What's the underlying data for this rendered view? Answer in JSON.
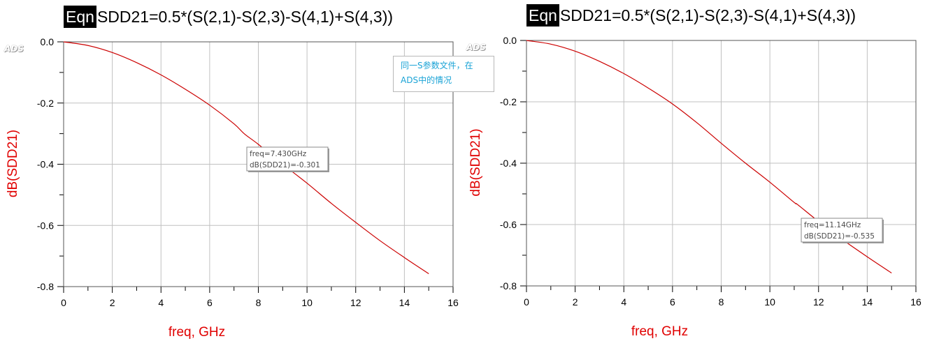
{
  "annotation": {
    "line1": "同一S参数文件，在",
    "line2": "ADS中的情况"
  },
  "colors": {
    "curve": "#cc0000",
    "axis_label": "#e00000",
    "annotation": "#1aa3d6",
    "grid": "#c0c0c0"
  },
  "chart_data": [
    {
      "type": "line",
      "eqn_badge": "Eqn",
      "title": "SDD21=0.5*(S(2,1)-S(2,3)-S(4,1)+S(4,3))",
      "watermark": "ADS",
      "xlabel": "freq, GHz",
      "ylabel": "dB(SDD21)",
      "xlim": [
        0,
        16
      ],
      "ylim": [
        -0.8,
        0.0
      ],
      "x_ticks": [
        0,
        2,
        4,
        6,
        8,
        10,
        12,
        14,
        16
      ],
      "x_tick_labels": [
        "0",
        "2",
        "4",
        "6",
        "8",
        "10",
        "12",
        "14",
        "16"
      ],
      "y_ticks": [
        0.0,
        -0.2,
        -0.4,
        -0.6,
        -0.8
      ],
      "y_tick_labels": [
        "0.0",
        "-0.2",
        "-0.4",
        "-0.6",
        "-0.8"
      ],
      "grid": true,
      "series": [
        {
          "x": [
            0,
            1,
            2,
            3,
            4,
            5,
            6,
            7,
            7.43,
            8,
            9,
            10,
            11,
            12,
            13,
            14,
            15
          ],
          "y": [
            0.0,
            -0.012,
            -0.035,
            -0.068,
            -0.108,
            -0.155,
            -0.207,
            -0.268,
            -0.301,
            -0.335,
            -0.4,
            -0.462,
            -0.528,
            -0.59,
            -0.65,
            -0.705,
            -0.758
          ]
        }
      ],
      "marker": {
        "x": 7.43,
        "y": -0.301,
        "line1": "freq=7.430GHz",
        "line2": "dB(SDD21)=-0.301"
      }
    },
    {
      "type": "line",
      "eqn_badge": "Eqn",
      "title": "SDD21=0.5*(S(2,1)-S(2,3)-S(4,1)+S(4,3))",
      "watermark": "ADS",
      "xlabel": "freq, GHz",
      "ylabel": "dB(SDD21)",
      "xlim": [
        0,
        16
      ],
      "ylim": [
        -0.8,
        0.0
      ],
      "x_ticks": [
        0,
        2,
        4,
        6,
        8,
        10,
        12,
        14,
        16
      ],
      "x_tick_labels": [
        "0",
        "2",
        "4",
        "6",
        "8",
        "10",
        "12",
        "14",
        "16"
      ],
      "y_ticks": [
        0.0,
        -0.2,
        -0.4,
        -0.6,
        -0.8
      ],
      "y_tick_labels": [
        "0.0",
        "-0.2",
        "-0.4",
        "-0.6",
        "-0.8"
      ],
      "grid": true,
      "series": [
        {
          "x": [
            0,
            1,
            2,
            3,
            4,
            5,
            6,
            7,
            8,
            9,
            10,
            11,
            11.14,
            12,
            13,
            14,
            15
          ],
          "y": [
            0.0,
            -0.012,
            -0.035,
            -0.068,
            -0.108,
            -0.155,
            -0.207,
            -0.268,
            -0.335,
            -0.4,
            -0.462,
            -0.528,
            -0.535,
            -0.59,
            -0.65,
            -0.705,
            -0.758
          ]
        }
      ],
      "marker": {
        "x": 11.14,
        "y": -0.535,
        "line1": "freq=11.14GHz",
        "line2": "dB(SDD21)=-0.535"
      }
    }
  ]
}
